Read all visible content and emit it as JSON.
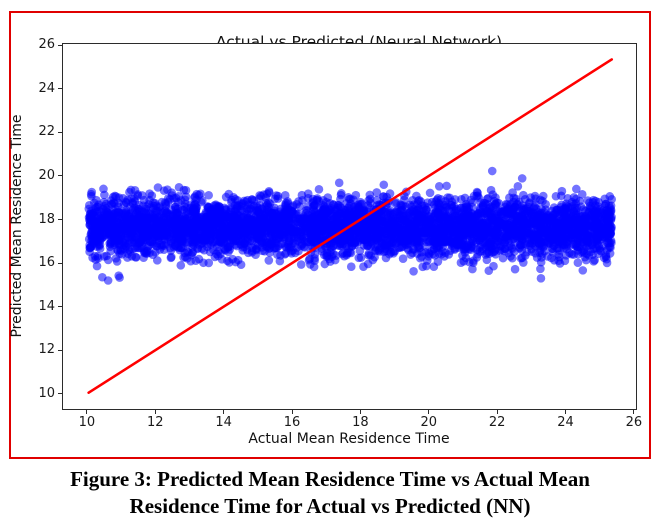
{
  "figure": {
    "border_color": "#e00000",
    "caption_lines": [
      "Figure 3: Predicted Mean Residence Time vs Actual Mean",
      "Residence Time for Actual vs Predicted (NN)"
    ]
  },
  "chart_data": {
    "type": "scatter",
    "title": "Actual vs Predicted (Neural Network)",
    "xlabel": "Actual Mean Residence Time",
    "ylabel": "Predicted Mean Residence Time",
    "xlim": [
      9.3,
      26.06
    ],
    "ylim": [
      9.3,
      26.06
    ],
    "xticks": [
      10,
      12,
      14,
      16,
      18,
      20,
      22,
      24,
      26
    ],
    "yticks": [
      10,
      12,
      14,
      16,
      18,
      20,
      22,
      24,
      26
    ],
    "grid": false,
    "legend": null,
    "series": [
      {
        "name": "nn-predictions",
        "kind": "scatter",
        "marker_color": "#0000ff",
        "marker_alpha": 0.55,
        "marker_radius": 4.3,
        "n_points": 4500,
        "x_distribution": {
          "type": "uniform",
          "min": 10.05,
          "max": 25.35
        },
        "y_distribution": {
          "type": "normal",
          "mean": 17.65,
          "std": 0.66
        },
        "seed": 42,
        "outliers": [
          [
            10.45,
            15.35
          ],
          [
            10.62,
            15.2
          ],
          [
            23.28,
            15.3
          ]
        ],
        "description": "Predicted values form a horizontal band around y=17.65 regardless of actual value"
      },
      {
        "name": "identity-line",
        "kind": "line",
        "color": "#ff0000",
        "width": 2.6,
        "points": [
          [
            10.05,
            10.05
          ],
          [
            25.35,
            25.35
          ]
        ],
        "description": "y = x reference line"
      }
    ]
  }
}
